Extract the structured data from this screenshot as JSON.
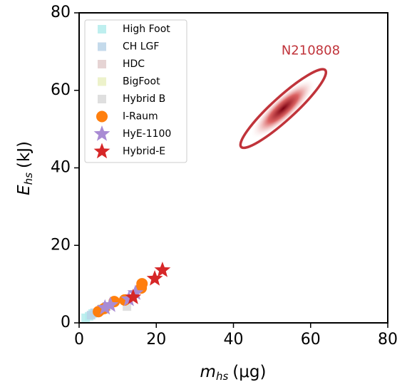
{
  "chart_data": {
    "type": "scatter",
    "xlabel": {
      "symbol": "m",
      "subscript": "hs",
      "unit": "(μg)"
    },
    "ylabel": {
      "symbol": "E",
      "subscript": "hs",
      "unit": "(kJ)"
    },
    "xlim": [
      0,
      80
    ],
    "ylim": [
      0,
      80
    ],
    "xticks": [
      0,
      20,
      40,
      60,
      80
    ],
    "yticks": [
      0,
      20,
      40,
      60,
      80
    ],
    "legend": "upper left",
    "series": [
      {
        "name": "High Foot",
        "color": "#b3ecec",
        "marker": "square",
        "x": [
          1.7,
          2.6,
          3.5
        ],
        "values": [
          1.3,
          1.7,
          2.4
        ]
      },
      {
        "name": "CH LGF",
        "color": "#bad4e7",
        "marker": "square",
        "x": [
          3.1,
          4.0
        ],
        "values": [
          2.0,
          2.6
        ]
      },
      {
        "name": "HDC",
        "color": "#e2cccc",
        "marker": "square",
        "x": [
          5.4
        ],
        "values": [
          3.1
        ]
      },
      {
        "name": "BigFoot",
        "color": "#eaf0c2",
        "marker": "square",
        "x": [
          5.9
        ],
        "values": [
          3.7
        ]
      },
      {
        "name": "Hybrid B",
        "color": "#d9d9d9",
        "marker": "square",
        "x": [
          7.2,
          12.4
        ],
        "values": [
          4.2,
          4.2
        ]
      },
      {
        "name": "I-Raum",
        "color": "#ff7f0e",
        "marker": "circle",
        "x": [
          5.0,
          6.5,
          9.1,
          11.8,
          16.1,
          16.3
        ],
        "values": [
          2.9,
          3.7,
          5.5,
          5.9,
          9.0,
          10.1
        ]
      },
      {
        "name": "HyE-1100",
        "color": "#a98bd4",
        "marker": "star",
        "x": [
          6.7,
          8.1,
          12.9,
          14.6
        ],
        "values": [
          3.9,
          4.6,
          6.1,
          7.7
        ]
      },
      {
        "name": "Hybrid-E",
        "color": "#d62728",
        "marker": "star",
        "x": [
          14.0,
          19.6,
          21.6
        ],
        "values": [
          6.6,
          11.4,
          13.6
        ]
      }
    ],
    "contour": {
      "label": "N210808",
      "color": "#c0333a",
      "x": [
        42.3,
        52.9,
        64.1
      ],
      "values": [
        45.6,
        55.3,
        65.4
      ]
    }
  }
}
